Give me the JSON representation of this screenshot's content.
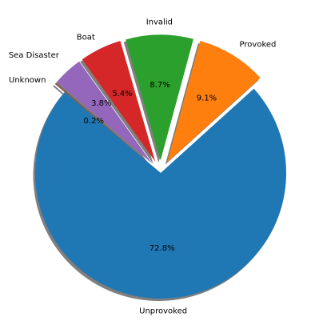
{
  "chart_data": {
    "type": "pie",
    "title": "",
    "start_angle_deg": 140,
    "counterclockwise": true,
    "shadow": true,
    "series": [
      {
        "name": "Unprovoked",
        "value": 72.8,
        "pct_label": "72.8%",
        "color": "#1f77b4",
        "explode": 0.0
      },
      {
        "name": "Provoked",
        "value": 9.1,
        "pct_label": "9.1%",
        "color": "#ff7f0e",
        "explode": 0.1
      },
      {
        "name": "Invalid",
        "value": 8.7,
        "pct_label": "8.7%",
        "color": "#2ca02c",
        "explode": 0.1
      },
      {
        "name": "Boat",
        "value": 5.4,
        "pct_label": "5.4%",
        "color": "#d62728",
        "explode": 0.1
      },
      {
        "name": "Sea Disaster",
        "value": 3.8,
        "pct_label": "3.8%",
        "color": "#9467bd",
        "explode": 0.1
      },
      {
        "name": "Unknown",
        "value": 0.2,
        "pct_label": "0.2%",
        "color": "#8c564b",
        "explode": 0.1
      }
    ]
  }
}
